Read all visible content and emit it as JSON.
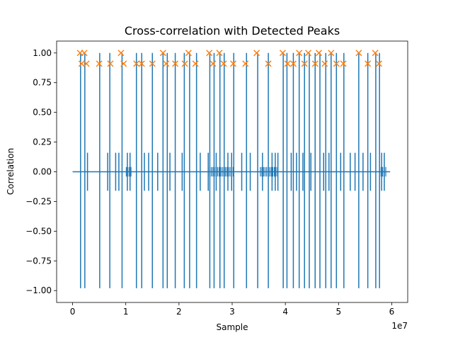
{
  "chart_data": {
    "type": "line",
    "title": "Cross-correlation with Detected Peaks",
    "xlabel": "Sample",
    "ylabel": "Correlation",
    "x_offset_label": "1e7",
    "xlim": [
      -3000000,
      63000000
    ],
    "ylim": [
      -1.1,
      1.1
    ],
    "x_ticks": [
      0,
      10000000,
      20000000,
      30000000,
      40000000,
      50000000,
      60000000
    ],
    "x_tick_labels": [
      "0",
      "1",
      "2",
      "3",
      "4",
      "5",
      "6"
    ],
    "y_ticks": [
      -1.0,
      -0.75,
      -0.5,
      -0.25,
      0.0,
      0.25,
      0.5,
      0.75,
      1.0
    ],
    "y_tick_labels": [
      "−1.00",
      "−0.75",
      "−0.50",
      "−0.25",
      "0.00",
      "0.25",
      "0.50",
      "0.75",
      "1.00"
    ],
    "grid": false,
    "signal_range": [
      0,
      59700000
    ],
    "series": [
      {
        "color": "#1f77b4",
        "marker": "line",
        "spike_positions": [
          1500000,
          2300000,
          5100000,
          7000000,
          9300000,
          12000000,
          13000000,
          15000000,
          17000000,
          17800000,
          19300000,
          21000000,
          22000000,
          23300000,
          25800000,
          26600000,
          27700000,
          28500000,
          30300000,
          32700000,
          34800000,
          36800000,
          39600000,
          40300000,
          41500000,
          42600000,
          43600000,
          44500000,
          45600000,
          46500000,
          47600000,
          48600000,
          49600000,
          51000000,
          53800000,
          55500000,
          57000000,
          57700000
        ],
        "spike_peak": 1.0,
        "spike_trough": -0.98,
        "secondary_positions": [
          2800000,
          6600000,
          8100000,
          8700000,
          10300000,
          10800000,
          13500000,
          14300000,
          16000000,
          18300000,
          20600000,
          24000000,
          25500000,
          27000000,
          29200000,
          29900000,
          31800000,
          33400000,
          35700000,
          37500000,
          38100000,
          38600000,
          41100000,
          42100000,
          43300000,
          44800000,
          47200000,
          48200000,
          50400000,
          52200000,
          53100000,
          54600000,
          56000000,
          58100000,
          58600000
        ],
        "secondary_level": 0.16,
        "clusters": [
          [
            10100000,
            11000000
          ],
          [
            25500000,
            30300000
          ],
          [
            35300000,
            38800000
          ],
          [
            58000000,
            58900000
          ]
        ]
      },
      {
        "color": "#ff7f0e",
        "marker": "x",
        "peaks_x": [
          1400000,
          1700000,
          2200000,
          2600000,
          5000000,
          7100000,
          9100000,
          9600000,
          12000000,
          13000000,
          15000000,
          17000000,
          17600000,
          19300000,
          21100000,
          21800000,
          23100000,
          25700000,
          26400000,
          27600000,
          28400000,
          30200000,
          32500000,
          34600000,
          36800000,
          39500000,
          40400000,
          41500000,
          42600000,
          43600000,
          44300000,
          45600000,
          46300000,
          47400000,
          48600000,
          49600000,
          50900000,
          53800000,
          55500000,
          56900000,
          57600000
        ],
        "peaks_y": [
          1.0,
          0.91,
          1.0,
          0.91,
          0.91,
          0.91,
          1.0,
          0.91,
          0.91,
          0.91,
          0.91,
          1.0,
          0.91,
          0.91,
          0.91,
          1.0,
          0.91,
          1.0,
          0.91,
          1.0,
          0.91,
          0.91,
          0.91,
          1.0,
          0.91,
          1.0,
          0.91,
          0.91,
          1.0,
          0.91,
          1.0,
          0.91,
          1.0,
          0.91,
          1.0,
          0.91,
          0.91,
          1.0,
          0.91,
          1.0,
          0.91
        ]
      }
    ]
  }
}
